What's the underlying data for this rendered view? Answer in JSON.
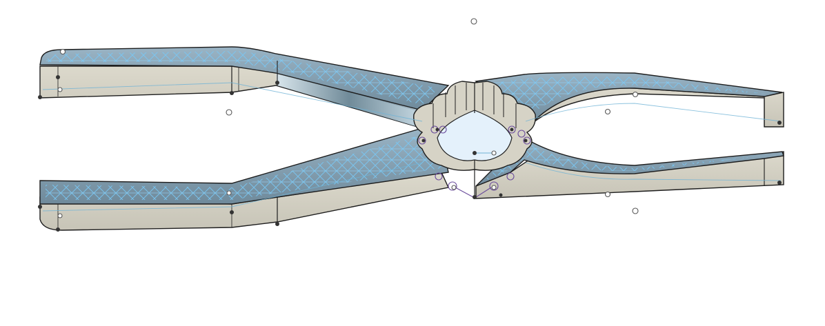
{
  "canvas": {
    "background": "#ffffff"
  },
  "model": {
    "kind": "scissor-linkage-gripper",
    "colors": {
      "top_face": "#7f98a8",
      "top_face_light": "#a9c4d6",
      "side_face": "#d6d3c6",
      "side_face_shadow": "#b9b6aa",
      "edge": "#1d1d1d",
      "lattice": "#79c6f2",
      "hub_fill": "#e4f1fb",
      "sketch_line": "#6fb3d6",
      "constraint_purple": "#6a4c9c"
    }
  },
  "icons": {
    "sketch_point": "hollow-circle",
    "vertex_point": "filled-dot"
  }
}
